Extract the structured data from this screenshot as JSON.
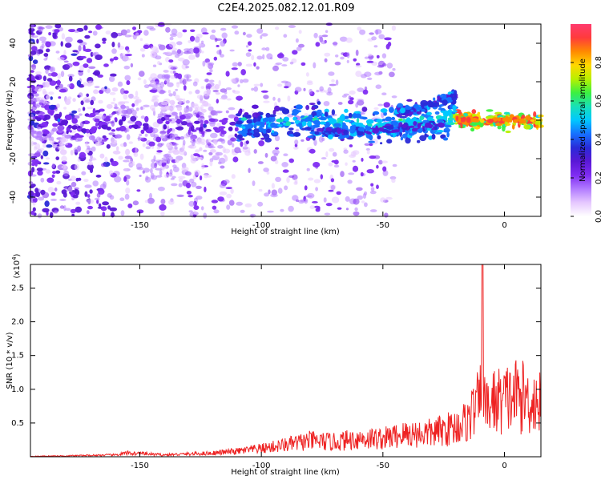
{
  "title": "C2E4.2025.082.12.01.R09",
  "chart_data": [
    {
      "type": "heatmap",
      "name": "spectrogram",
      "xlabel": "Height of straight line (km)",
      "ylabel": "Frequency (Hz)",
      "xlim": [
        -195,
        15
      ],
      "ylim": [
        -50,
        50
      ],
      "x_ticks": [
        -150,
        -100,
        -50,
        0
      ],
      "y_ticks": [
        40,
        20,
        0,
        -20,
        -40
      ],
      "colorbar": {
        "label": "Normalized spectral amplitude",
        "range": [
          0,
          1
        ],
        "ticks": [
          "0.0",
          "0.2",
          "0.4",
          "0.6",
          "0.8"
        ],
        "tick_values": [
          0,
          0.2,
          0.4,
          0.6,
          0.8
        ],
        "colors": [
          "#ffffff",
          "#e6c8ff",
          "#b27bff",
          "#7f2cf2",
          "#5a18d6",
          "#2a2ad8",
          "#1670ff",
          "#00c8ff",
          "#18e0b8",
          "#3cf040",
          "#b8f000",
          "#ffd800",
          "#ff8a00",
          "#ff3b3b",
          "#ff3b6e"
        ]
      },
      "ridge": [
        {
          "x": -190,
          "y": 0
        },
        {
          "x": -170,
          "y": -5
        },
        {
          "x": -150,
          "y": -3
        },
        {
          "x": -130,
          "y": -3
        },
        {
          "x": -110,
          "y": -4
        },
        {
          "x": -100,
          "y": -2
        },
        {
          "x": -90,
          "y": -1
        },
        {
          "x": -80,
          "y": 0
        },
        {
          "x": -70,
          "y": -1
        },
        {
          "x": -60,
          "y": -2
        },
        {
          "x": -50,
          "y": -3
        },
        {
          "x": -40,
          "y": -2
        },
        {
          "x": -30,
          "y": -1
        },
        {
          "x": -20,
          "y": 1
        },
        {
          "x": -10,
          "y": 0
        },
        {
          "x": 0,
          "y": 0
        },
        {
          "x": 10,
          "y": 0
        },
        {
          "x": 15,
          "y": -1
        }
      ],
      "upper_branch": [
        {
          "x": -45,
          "y": 4
        },
        {
          "x": -35,
          "y": 6
        },
        {
          "x": -28,
          "y": 9
        },
        {
          "x": -20,
          "y": 13
        }
      ],
      "lower_branch": [
        {
          "x": -80,
          "y": -7
        },
        {
          "x": -70,
          "y": -7
        },
        {
          "x": -60,
          "y": -6
        },
        {
          "x": -50,
          "y": -5
        },
        {
          "x": -40,
          "y": -4
        },
        {
          "x": -30,
          "y": -3
        },
        {
          "x": -25,
          "y": -2
        }
      ]
    },
    {
      "type": "line",
      "name": "snr",
      "xlabel": "Height of straight line (km)",
      "ylabel": "SNR (10 * v/v)",
      "exponent_label": "(x10",
      "exponent_power": "4",
      "exponent_close": ")",
      "xlim": [
        -195,
        15
      ],
      "ylim": [
        0,
        2.85
      ],
      "x_ticks": [
        -150,
        -100,
        -50,
        0
      ],
      "y_ticks": [
        0.5,
        1.0,
        1.5,
        2.0,
        2.5
      ],
      "y_tick_labels": [
        "0.5",
        "1.0",
        "1.5",
        "2.0",
        "2.5"
      ],
      "color": "#ee2222",
      "envelope": [
        {
          "x": -195,
          "y": 0.01
        },
        {
          "x": -180,
          "y": 0.02
        },
        {
          "x": -160,
          "y": 0.04
        },
        {
          "x": -155,
          "y": 0.08
        },
        {
          "x": -150,
          "y": 0.07
        },
        {
          "x": -140,
          "y": 0.04
        },
        {
          "x": -130,
          "y": 0.06
        },
        {
          "x": -120,
          "y": 0.08
        },
        {
          "x": -110,
          "y": 0.12
        },
        {
          "x": -100,
          "y": 0.18
        },
        {
          "x": -90,
          "y": 0.26
        },
        {
          "x": -80,
          "y": 0.35
        },
        {
          "x": -70,
          "y": 0.32
        },
        {
          "x": -60,
          "y": 0.4
        },
        {
          "x": -50,
          "y": 0.4
        },
        {
          "x": -40,
          "y": 0.5
        },
        {
          "x": -30,
          "y": 0.52
        },
        {
          "x": -20,
          "y": 0.65
        },
        {
          "x": -15,
          "y": 0.8
        },
        {
          "x": -12,
          "y": 1.1
        },
        {
          "x": -10,
          "y": 1.2
        },
        {
          "x": -9,
          "y": 2.85
        },
        {
          "x": -8,
          "y": 1.0
        },
        {
          "x": -5,
          "y": 1.2
        },
        {
          "x": 0,
          "y": 1.25
        },
        {
          "x": 5,
          "y": 1.35
        },
        {
          "x": 10,
          "y": 1.25
        },
        {
          "x": 15,
          "y": 1.2
        }
      ]
    }
  ]
}
